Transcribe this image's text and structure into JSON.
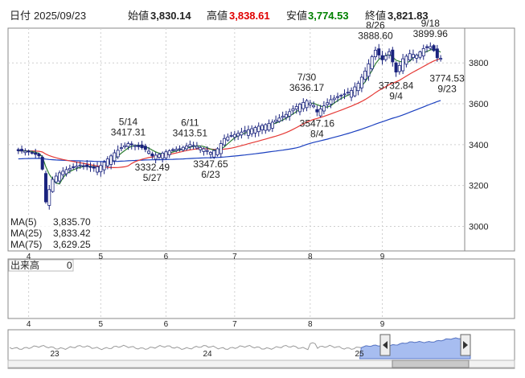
{
  "header": {
    "date_label": "日付",
    "date": "2025/09/23",
    "open_label": "始値",
    "open": "3,830.14",
    "high_label": "高値",
    "high": "3,838.61",
    "low_label": "安値",
    "low": "3,774.53",
    "close_label": "終値",
    "close": "3,821.83"
  },
  "colors": {
    "high": "#e00000",
    "low": "#008000",
    "ma5": "#2e7d32",
    "ma25": "#e53935",
    "ma75": "#1a3fbf",
    "candle_up": "#ffffff",
    "candle_down": "#1a237e",
    "volume_fill": "#a7bdf0"
  },
  "legend": [
    {
      "name": "MA(5)",
      "value": "3,835.70"
    },
    {
      "name": "MA(25)",
      "value": "3,833.42"
    },
    {
      "name": "MA(75)",
      "value": "3,629.25"
    }
  ],
  "volume_panel": {
    "label": "出来高",
    "value": "0"
  },
  "overview": {
    "year_labels": [
      "23",
      "24",
      "25"
    ],
    "selected_range": [
      0.76,
      1.0
    ]
  },
  "chart_data": {
    "type": "candlestick",
    "ylim": [
      2880,
      3970
    ],
    "y_ticks": [
      3000,
      3200,
      3400,
      3600,
      3800
    ],
    "x_range": [
      -3,
      130
    ],
    "month_ticks": [
      {
        "label": "4",
        "index": 3
      },
      {
        "label": "5",
        "index": 24
      },
      {
        "label": "6",
        "index": 43
      },
      {
        "label": "7",
        "index": 63
      },
      {
        "label": "8",
        "index": 85
      },
      {
        "label": "9",
        "index": 106
      }
    ],
    "annotations": [
      {
        "date": "5/14",
        "value": "3417.31",
        "index": 32,
        "price": 3417.31,
        "pos": "above"
      },
      {
        "date": "5/27",
        "value": "3332.49",
        "index": 39,
        "price": 3332.49,
        "pos": "below"
      },
      {
        "date": "6/11",
        "value": "3413.51",
        "index": 50,
        "price": 3413.51,
        "pos": "above"
      },
      {
        "date": "6/23",
        "value": "3347.65",
        "index": 56,
        "price": 3347.65,
        "pos": "below"
      },
      {
        "date": "7/30",
        "value": "3636.17",
        "index": 84,
        "price": 3636.17,
        "pos": "above"
      },
      {
        "date": "8/4",
        "value": "3547.16",
        "index": 87,
        "price": 3547.16,
        "pos": "below"
      },
      {
        "date": "8/26",
        "value": "3888.60",
        "index": 104,
        "price": 3888.6,
        "pos": "above"
      },
      {
        "date": "9/4",
        "value": "3732.84",
        "index": 110,
        "price": 3732.84,
        "pos": "below"
      },
      {
        "date": "9/18",
        "value": "3899.96",
        "index": 120,
        "price": 3899.96,
        "pos": "above"
      },
      {
        "date": "9/23",
        "value": "3774.53",
        "index": 123,
        "price": 3774.53,
        "pos": "belowright"
      }
    ],
    "waypoints": [
      [
        0,
        3370
      ],
      [
        2,
        3368
      ],
      [
        4,
        3360
      ],
      [
        6,
        3345
      ],
      [
        7,
        3280
      ],
      [
        8,
        3120
      ],
      [
        9,
        3180
      ],
      [
        10,
        3230
      ],
      [
        12,
        3262
      ],
      [
        14,
        3278
      ],
      [
        16,
        3290
      ],
      [
        18,
        3300
      ],
      [
        20,
        3292
      ],
      [
        22,
        3285
      ],
      [
        24,
        3298
      ],
      [
        26,
        3330
      ],
      [
        28,
        3360
      ],
      [
        30,
        3385
      ],
      [
        32,
        3405
      ],
      [
        34,
        3395
      ],
      [
        36,
        3385
      ],
      [
        38,
        3368
      ],
      [
        39,
        3345
      ],
      [
        41,
        3352
      ],
      [
        43,
        3365
      ],
      [
        45,
        3375
      ],
      [
        47,
        3380
      ],
      [
        50,
        3400
      ],
      [
        52,
        3392
      ],
      [
        54,
        3380
      ],
      [
        56,
        3362
      ],
      [
        58,
        3380
      ],
      [
        60,
        3430
      ],
      [
        62,
        3445
      ],
      [
        64,
        3455
      ],
      [
        66,
        3468
      ],
      [
        68,
        3478
      ],
      [
        70,
        3490
      ],
      [
        72,
        3498
      ],
      [
        74,
        3510
      ],
      [
        76,
        3530
      ],
      [
        78,
        3548
      ],
      [
        80,
        3575
      ],
      [
        82,
        3598
      ],
      [
        84,
        3615
      ],
      [
        86,
        3592
      ],
      [
        87,
        3560
      ],
      [
        89,
        3590
      ],
      [
        91,
        3620
      ],
      [
        93,
        3635
      ],
      [
        95,
        3648
      ],
      [
        97,
        3665
      ],
      [
        99,
        3700
      ],
      [
        101,
        3760
      ],
      [
        103,
        3830
      ],
      [
        104,
        3862
      ],
      [
        106,
        3815
      ],
      [
        108,
        3855
      ],
      [
        110,
        3755
      ],
      [
        112,
        3820
      ],
      [
        114,
        3845
      ],
      [
        116,
        3838
      ],
      [
        118,
        3870
      ],
      [
        120,
        3880
      ],
      [
        121,
        3860
      ],
      [
        122,
        3825
      ],
      [
        123,
        3822
      ]
    ]
  }
}
